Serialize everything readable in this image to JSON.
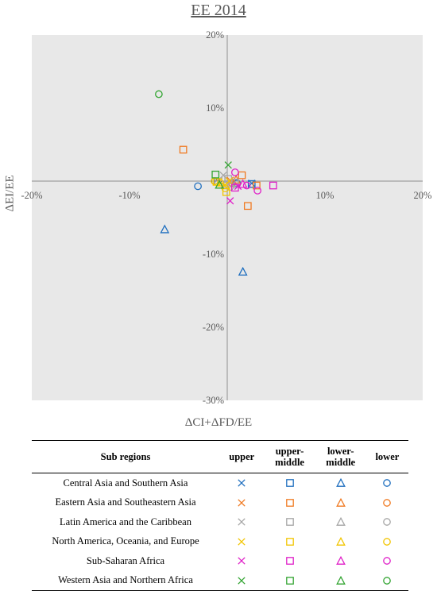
{
  "chart_data": {
    "type": "scatter",
    "title": "EE 2014",
    "xlabel": "ΔCI+ΔFD/EE",
    "ylabel": "ΔEI/EE",
    "xlim": [
      -20,
      20
    ],
    "ylim": [
      -30,
      20
    ],
    "x_ticks": [
      -20,
      -10,
      0,
      10,
      20
    ],
    "y_ticks": [
      -30,
      -20,
      -10,
      0,
      10,
      20
    ],
    "x_tick_labels": [
      "-20%",
      "-10%",
      "0%",
      "10%",
      "20%"
    ],
    "y_tick_labels": [
      "-30%",
      "-20%",
      "-10%",
      "0%",
      "10%",
      "20%"
    ],
    "grid": false,
    "region_colors": {
      "Central Asia and Southern Asia": "#1f6fbf",
      "Eastern Asia and Southeastern Asia": "#f07a22",
      "Latin America and the Caribbean": "#a6a6a6",
      "North America, Oceania, and Europe": "#f2c500",
      "Sub-Saharan Africa": "#e020c8",
      "Western Asia and Northern Africa": "#33a532"
    },
    "series": [
      {
        "region": "Central Asia and Southern Asia",
        "level": "upper",
        "marker": "x",
        "points": [
          [
            2.5,
            -0.3
          ]
        ]
      },
      {
        "region": "Central Asia and Southern Asia",
        "level": "upper-middle",
        "marker": "square",
        "points": [
          [
            2.5,
            -0.4
          ]
        ]
      },
      {
        "region": "Central Asia and Southern Asia",
        "level": "lower-middle",
        "marker": "triangle",
        "points": [
          [
            -6.4,
            -6.6
          ],
          [
            1.6,
            -12.4
          ]
        ]
      },
      {
        "region": "Central Asia and Southern Asia",
        "level": "lower",
        "marker": "circle",
        "points": [
          [
            -3.0,
            -0.7
          ],
          [
            1.0,
            -0.3
          ]
        ]
      },
      {
        "region": "Eastern Asia and Southeastern Asia",
        "level": "upper",
        "marker": "x",
        "points": [
          [
            0.3,
            0.1
          ]
        ]
      },
      {
        "region": "Eastern Asia and Southeastern Asia",
        "level": "upper-middle",
        "marker": "square",
        "points": [
          [
            -4.5,
            4.3
          ],
          [
            1.5,
            0.8
          ],
          [
            2.1,
            -3.4
          ],
          [
            3.0,
            -0.6
          ]
        ]
      },
      {
        "region": "Eastern Asia and Southeastern Asia",
        "level": "lower-middle",
        "marker": "triangle",
        "points": [
          [
            0.9,
            0.2
          ]
        ]
      },
      {
        "region": "Eastern Asia and Southeastern Asia",
        "level": "lower",
        "marker": "circle",
        "points": [
          [
            0.5,
            -0.3
          ]
        ]
      },
      {
        "region": "Latin America and the Caribbean",
        "level": "upper",
        "marker": "x",
        "points": [
          [
            -0.4,
            0.8
          ],
          [
            0.5,
            -0.5
          ]
        ]
      },
      {
        "region": "Latin America and the Caribbean",
        "level": "upper-middle",
        "marker": "square",
        "points": [
          [
            0.1,
            0.3
          ],
          [
            0.8,
            -0.2
          ]
        ]
      },
      {
        "region": "Latin America and the Caribbean",
        "level": "lower-middle",
        "marker": "triangle",
        "points": [
          [
            -0.2,
            -0.4
          ]
        ]
      },
      {
        "region": "Latin America and the Caribbean",
        "level": "lower",
        "marker": "circle",
        "points": [
          [
            0.3,
            -0.8
          ]
        ]
      },
      {
        "region": "North America, Oceania, and Europe",
        "level": "upper",
        "marker": "x",
        "points": [
          [
            -0.3,
            -0.6
          ],
          [
            0.2,
            0.0
          ]
        ]
      },
      {
        "region": "North America, Oceania, and Europe",
        "level": "upper-middle",
        "marker": "square",
        "points": [
          [
            -1.1,
            -0.1
          ],
          [
            -0.1,
            -1.5
          ]
        ]
      },
      {
        "region": "North America, Oceania, and Europe",
        "level": "lower-middle",
        "marker": "triangle",
        "points": [
          [
            -0.6,
            -0.2
          ]
        ]
      },
      {
        "region": "North America, Oceania, and Europe",
        "level": "lower",
        "marker": "circle",
        "points": [
          [
            -1.3,
            0.0
          ],
          [
            -0.2,
            -1.0
          ]
        ]
      },
      {
        "region": "Sub-Saharan Africa",
        "level": "upper",
        "marker": "x",
        "points": [
          [
            0.3,
            -2.7
          ],
          [
            1.1,
            -0.7
          ]
        ]
      },
      {
        "region": "Sub-Saharan Africa",
        "level": "upper-middle",
        "marker": "square",
        "points": [
          [
            4.7,
            -0.6
          ],
          [
            0.8,
            -0.9
          ]
        ]
      },
      {
        "region": "Sub-Saharan Africa",
        "level": "lower-middle",
        "marker": "triangle",
        "points": [
          [
            1.6,
            -0.4
          ]
        ]
      },
      {
        "region": "Sub-Saharan Africa",
        "level": "lower",
        "marker": "circle",
        "points": [
          [
            0.8,
            1.2
          ],
          [
            3.1,
            -1.3
          ],
          [
            2.0,
            -0.6
          ]
        ]
      },
      {
        "region": "Western Asia and Northern Africa",
        "level": "upper",
        "marker": "x",
        "points": [
          [
            0.1,
            2.2
          ]
        ]
      },
      {
        "region": "Western Asia and Northern Africa",
        "level": "upper-middle",
        "marker": "square",
        "points": [
          [
            -1.2,
            0.9
          ]
        ]
      },
      {
        "region": "Western Asia and Northern Africa",
        "level": "lower-middle",
        "marker": "triangle",
        "points": [
          [
            -0.8,
            -0.5
          ]
        ]
      },
      {
        "region": "Western Asia and Northern Africa",
        "level": "lower",
        "marker": "circle",
        "points": [
          [
            -7.0,
            11.9
          ]
        ]
      }
    ]
  },
  "legend": {
    "headers": [
      "Sub regions",
      "upper",
      "upper-middle",
      "lower-middle",
      "lower"
    ],
    "header_lines": {
      "upper_middle_1": "upper-",
      "upper_middle_2": "middle",
      "lower_middle_1": "lower-",
      "lower_middle_2": "middle"
    },
    "rows": [
      "Central Asia and Southern Asia",
      "Eastern Asia and Southeastern Asia",
      "Latin America and the Caribbean",
      "North America, Oceania, and Europe",
      "Sub-Saharan Africa",
      "Western Asia and Northern Africa"
    ],
    "markers": [
      "x",
      "square",
      "triangle",
      "circle"
    ]
  }
}
